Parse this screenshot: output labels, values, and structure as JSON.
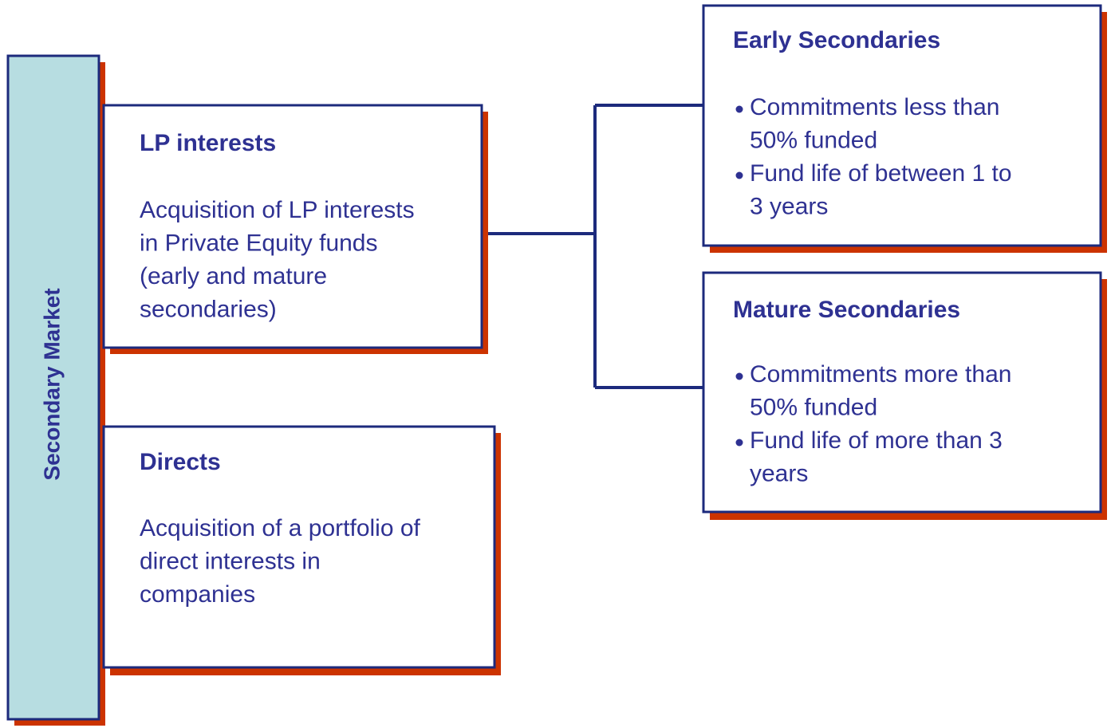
{
  "sidebar": {
    "label": "Secondary Market"
  },
  "boxes": [
    {
      "title": "LP interests",
      "body": [
        "Acquisition of LP interests",
        "in Private Equity funds",
        "(early and mature",
        "secondaries)"
      ]
    },
    {
      "title": "Directs",
      "body": [
        "Acquisition of a portfolio of",
        "direct interests in",
        "companies"
      ]
    }
  ],
  "branches": [
    {
      "title": "Early Secondaries",
      "bullets": [
        [
          "Commitments less than",
          "50% funded"
        ],
        [
          "Fund life of between 1 to",
          "3 years"
        ]
      ]
    },
    {
      "title": "Mature Secondaries",
      "bullets": [
        [
          "Commitments more than",
          "50% funded"
        ],
        [
          "Fund life of more than 3",
          "years"
        ]
      ]
    }
  ]
}
